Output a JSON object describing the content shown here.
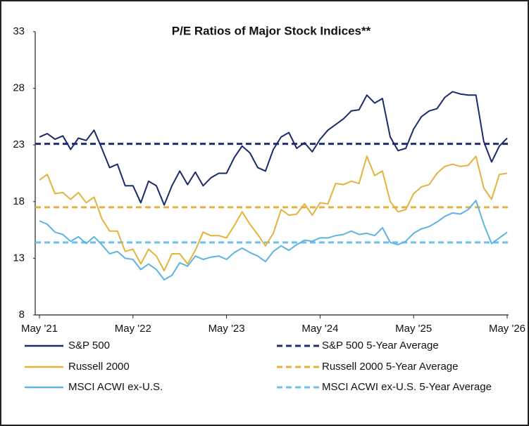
{
  "chart_data": {
    "type": "line",
    "title": "P/E Ratios of Major Stock Indices**",
    "categories": [
      "May '21",
      null,
      null,
      null,
      null,
      null,
      null,
      null,
      null,
      null,
      null,
      null,
      "May '22",
      null,
      null,
      null,
      null,
      null,
      null,
      null,
      null,
      null,
      null,
      null,
      "May '23",
      null,
      null,
      null,
      null,
      null,
      null,
      null,
      null,
      null,
      null,
      null,
      "May '24",
      null,
      null,
      null,
      null,
      null,
      null,
      null,
      null,
      null,
      null,
      null,
      "May '25",
      null,
      null,
      null,
      null,
      null,
      null,
      null,
      null,
      null,
      null,
      null,
      "May '26"
    ],
    "ylim": [
      8,
      33
    ],
    "yticks": [
      8,
      13,
      18,
      23,
      28,
      33
    ],
    "series": [
      {
        "name": "S&P 500",
        "color": "#1b2a6b",
        "values": [
          23.7,
          24.0,
          23.5,
          23.8,
          22.6,
          23.6,
          23.4,
          24.3,
          22.7,
          21.0,
          21.3,
          19.4,
          19.4,
          17.9,
          19.8,
          19.4,
          17.7,
          19.4,
          20.7,
          19.5,
          20.6,
          19.4,
          20.1,
          20.5,
          20.5,
          21.9,
          22.9,
          22.3,
          21.0,
          20.7,
          22.6,
          23.7,
          24.1,
          22.7,
          23.2,
          22.4,
          23.5,
          24.3,
          24.8,
          25.3,
          26.0,
          26.1,
          27.4,
          26.7,
          27.1,
          23.7,
          22.5,
          22.7,
          24.4,
          25.5,
          26.0,
          26.2,
          27.2,
          27.7,
          27.5,
          27.4,
          27.4,
          23.3,
          21.5,
          22.9,
          23.6
        ]
      },
      {
        "name": "Russell 2000",
        "color": "#e3b33d",
        "values": [
          19.9,
          20.4,
          18.7,
          18.8,
          18.2,
          18.8,
          17.9,
          18.4,
          16.5,
          15.4,
          15.4,
          13.6,
          13.8,
          12.5,
          13.8,
          13.2,
          11.9,
          13.4,
          13.4,
          12.5,
          13.7,
          15.3,
          15.0,
          15.0,
          14.8,
          15.9,
          17.1,
          16.0,
          15.1,
          14.1,
          15.2,
          17.3,
          16.8,
          16.9,
          17.8,
          16.8,
          17.9,
          17.8,
          19.6,
          19.5,
          19.8,
          19.6,
          22.0,
          20.3,
          20.7,
          18.0,
          17.1,
          17.3,
          18.7,
          19.3,
          19.5,
          20.5,
          21.1,
          21.3,
          21.1,
          21.2,
          22.0,
          19.2,
          18.2,
          20.4,
          20.5
        ]
      },
      {
        "name": "MSCI ACWI ex-U.S.",
        "color": "#5db4e3",
        "values": [
          16.3,
          16.0,
          15.3,
          15.1,
          14.5,
          14.9,
          14.3,
          14.9,
          14.2,
          13.4,
          13.6,
          13.0,
          12.9,
          12.0,
          12.5,
          12.0,
          11.1,
          11.5,
          12.6,
          12.3,
          13.2,
          12.9,
          13.1,
          13.2,
          12.9,
          13.5,
          13.9,
          13.5,
          13.2,
          12.7,
          13.6,
          14.1,
          13.7,
          14.2,
          14.6,
          14.5,
          14.8,
          14.8,
          15.0,
          15.1,
          15.4,
          15.1,
          15.2,
          15.0,
          15.7,
          14.4,
          14.2,
          14.5,
          15.2,
          15.6,
          15.8,
          16.2,
          16.7,
          17.0,
          16.9,
          17.3,
          18.1,
          16.0,
          14.3,
          14.8,
          15.3
        ]
      }
    ],
    "averages": [
      {
        "name": "S&P 500 5-Year Average",
        "color": "#1f2d7a",
        "value": 23.1
      },
      {
        "name": "Russell 2000 5-Year Average",
        "color": "#e3b33d",
        "value": 17.5
      },
      {
        "name": "MSCI ACWI ex-U.S. 5-Year Average",
        "color": "#6cc0ef",
        "value": 14.4
      }
    ]
  }
}
